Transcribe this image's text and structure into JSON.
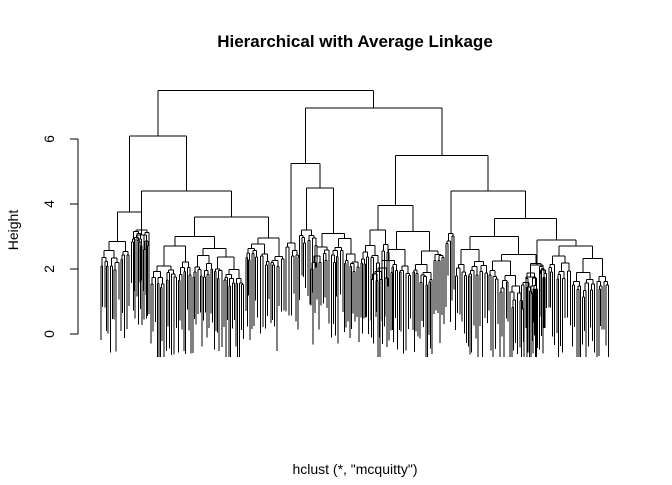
{
  "chart_data": {
    "type": "dendrogram",
    "title": "Hierarchical with Average Linkage",
    "xlabel": "hclust (*, \"mcquitty\")",
    "ylabel": "Height",
    "ylim": [
      -0.9,
      7.6
    ],
    "yticks": [
      0,
      2,
      4,
      6
    ],
    "grid": false,
    "legend": "none",
    "line_color": "#000000",
    "upper_merges": [
      {
        "height": 7.5,
        "children": [
          "A",
          "B"
        ]
      },
      {
        "height": 6.1,
        "children": [
          "A1",
          "A2"
        ]
      },
      {
        "height": 3.75,
        "children": [
          "A1a",
          "A1b"
        ]
      },
      {
        "height": 4.4,
        "children": [
          "A2a",
          "A2b"
        ]
      },
      {
        "height": 3.6,
        "children": [
          "A2b1",
          "A2b2"
        ]
      },
      {
        "height": 6.95,
        "children": [
          "B1",
          "B2"
        ]
      },
      {
        "height": 5.25,
        "children": [
          "B1a",
          "B1b"
        ]
      },
      {
        "height": 4.5,
        "children": [
          "B1b1",
          "B1b2"
        ]
      },
      {
        "height": 5.5,
        "children": [
          "B2a",
          "B2b"
        ]
      },
      {
        "height": 3.95,
        "children": [
          "B2a1",
          "B2a2"
        ]
      },
      {
        "height": 4.4,
        "children": [
          "B2b1",
          "B2b2"
        ]
      },
      {
        "height": 3.55,
        "children": [
          "B2b2a",
          "B2b2b"
        ]
      }
    ],
    "approx_leaf_count": 700,
    "leaf_height_range": [
      -0.7,
      2.8
    ]
  }
}
